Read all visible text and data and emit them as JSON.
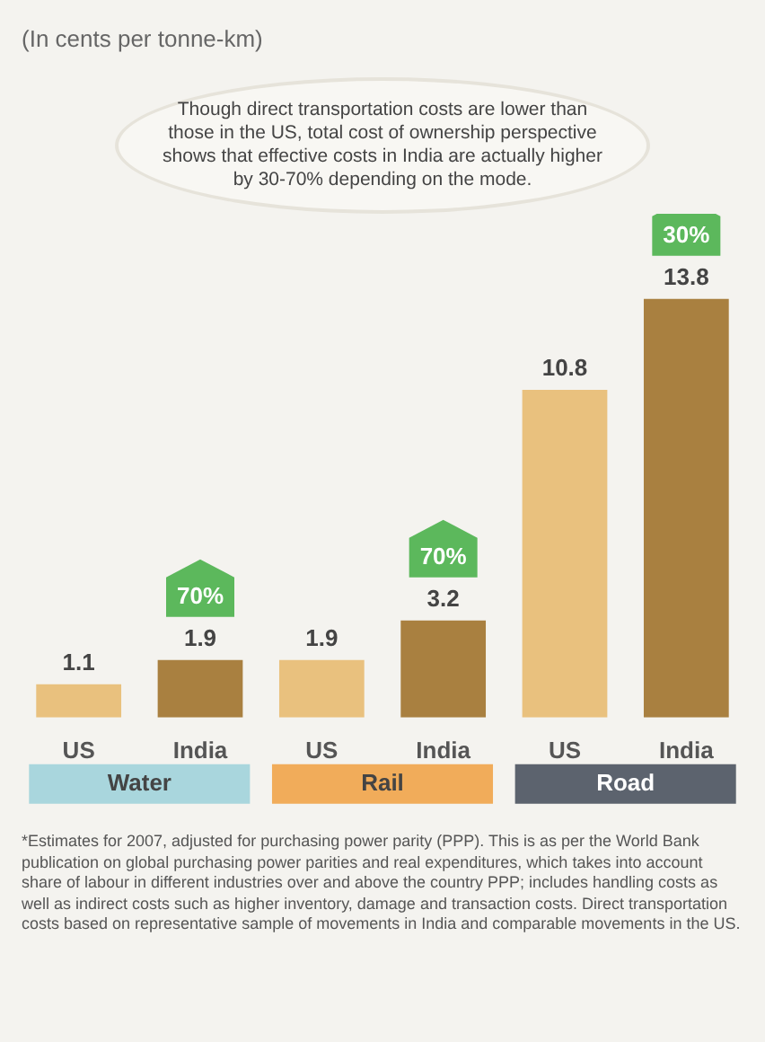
{
  "chart_data": {
    "type": "bar",
    "subtitle": "(In cents per tonne-km)",
    "categories": [
      "US",
      "India",
      "US",
      "India",
      "US",
      "India"
    ],
    "values": [
      1.1,
      1.9,
      1.9,
      3.2,
      10.8,
      13.8
    ],
    "colors": [
      "#e9c17e",
      "#a98040",
      "#e9c17e",
      "#a98040",
      "#e9c17e",
      "#a98040"
    ],
    "data_labels": true,
    "grid": false,
    "legend": false,
    "tick_labels": "x",
    "annotations": [
      "Though direct transportation costs are lower than those in the US, total cost of ownership perspective shows that effective costs in India are actually higher by 30-70% depending on the mode.",
      "Water",
      "Rail",
      "Road",
      "70%",
      "70%",
      "30%",
      "*Estimates for 2007, adjusted for purchasing power parity (PPP). This is as per the World Bank publication on global purchasing power parities and real expenditures, which takes into account share of labour in different industries over and above the country PPP; includes handling costs as well as indirect costs such as higher inventory, damage and transaction costs. Direct transportation costs based on representative sample of movements in India and comparable movements in the US."
    ]
  }
}
